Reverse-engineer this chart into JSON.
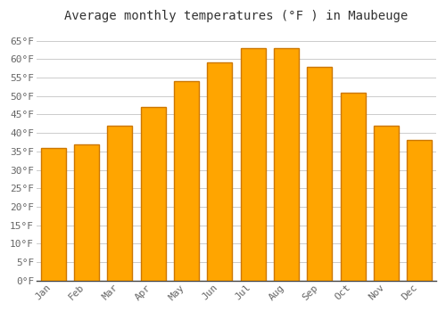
{
  "title": "Average monthly temperatures (°F ) in Maubeuge",
  "months": [
    "Jan",
    "Feb",
    "Mar",
    "Apr",
    "May",
    "Jun",
    "Jul",
    "Aug",
    "Sep",
    "Oct",
    "Nov",
    "Dec"
  ],
  "values": [
    36,
    37,
    42,
    47,
    54,
    59,
    63,
    63,
    58,
    51,
    42,
    38
  ],
  "bar_color_face": "#FFA500",
  "bar_color_edge": "#CC7700",
  "background_color": "#FFFFFF",
  "plot_bg_color": "#FFFFFF",
  "grid_color": "#CCCCCC",
  "ylim": [
    0,
    68
  ],
  "ytick_step": 5,
  "title_fontsize": 10,
  "tick_fontsize": 8,
  "font_family": "monospace",
  "tick_color": "#666666",
  "title_color": "#333333"
}
